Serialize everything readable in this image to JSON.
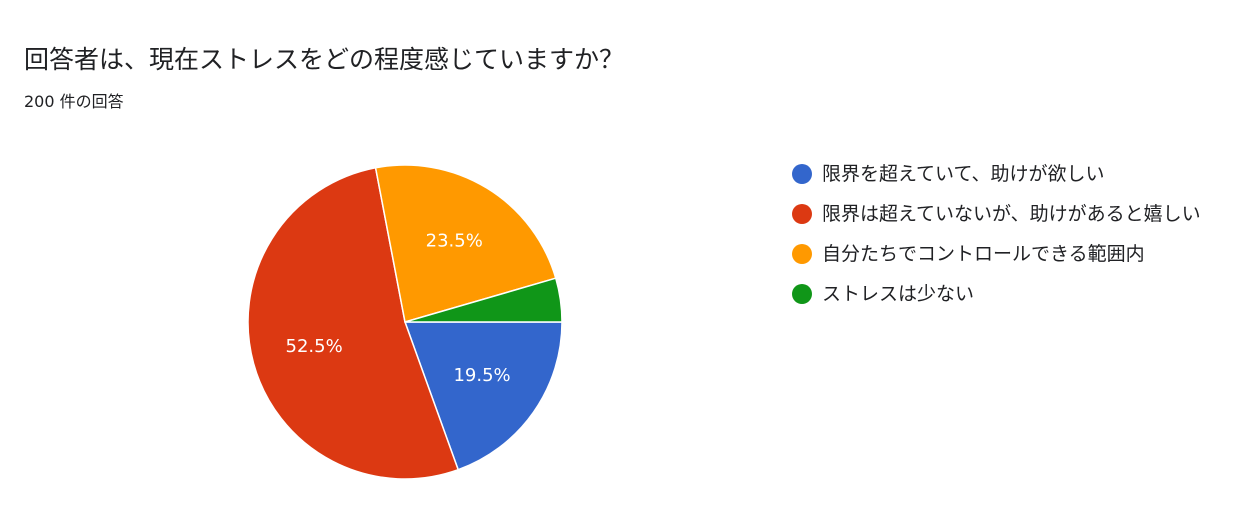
{
  "header": {
    "title": "回答者は、現在ストレスをどの程度感じていますか？",
    "subtitle": "200 件の回答"
  },
  "chart_data": {
    "type": "pie",
    "total_responses": 200,
    "slices": [
      {
        "label": "限界を超えていて、助けが欲しい",
        "value": 19.5,
        "display": "19.5%",
        "color": "#3366cc"
      },
      {
        "label": "限界は超えていないが、助けがあると嬉しい",
        "value": 52.5,
        "display": "52.5%",
        "color": "#dc3912"
      },
      {
        "label": "自分たちでコントロールできる範囲内",
        "value": 23.5,
        "display": "23.5%",
        "color": "#ff9900"
      },
      {
        "label": "ストレスは少ない",
        "value": 4.5,
        "display": "",
        "color": "#109618"
      }
    ],
    "legend_position": "right"
  }
}
